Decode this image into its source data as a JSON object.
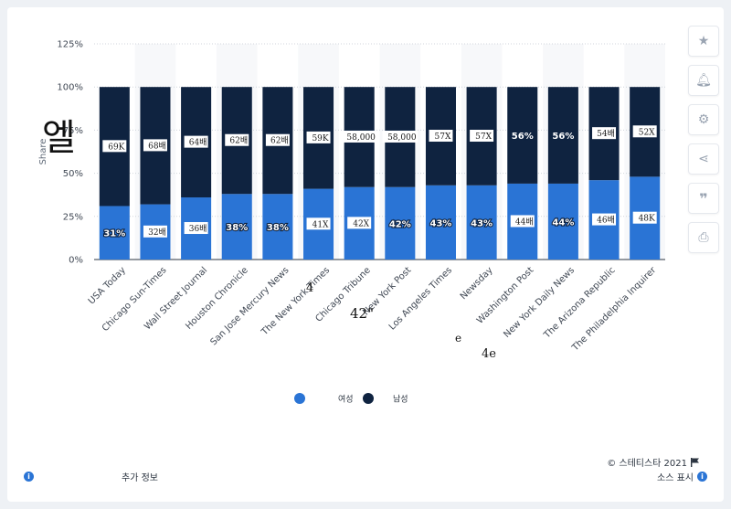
{
  "chart_data": {
    "type": "bar",
    "stacked": true,
    "ylabel": "Share",
    "ylim": [
      0,
      125
    ],
    "yticks": [
      "0%",
      "25%",
      "50%",
      "75%",
      "100%",
      "125%"
    ],
    "grid": true,
    "legend_position": "bottom",
    "categories": [
      "USA Today",
      "Chicago Sun-Times",
      "Wall Street Journal",
      "Houston Chronicle",
      "San Jose Mercury News",
      "The New York Times",
      "Chicago Tribune",
      "New York Post",
      "Los Angeles Times",
      "Newsday",
      "Washington Post",
      "New York Daily News",
      "The Arizona Republic",
      "The Philadelphia Inquirer"
    ],
    "category_labels": [
      "USA Today",
      "Chicago Sun-Times",
      "Wall Street Journal",
      "Houston Chronicle",
      "San Jose Mercury News",
      "The New York Times",
      "Chicago Tribune",
      "New York Post",
      "Los Angeles Times",
      "Newsday",
      "Washington Post",
      "New York Daily News",
      "The Arizona Republic",
      "The Philadelphia Inquirer"
    ],
    "series": [
      {
        "name": "여성",
        "color": "#2a74d5",
        "values": [
          31,
          32,
          36,
          38,
          38,
          41,
          42,
          42,
          43,
          43,
          44,
          44,
          46,
          48
        ],
        "labels": [
          "31%",
          "32배",
          "36배",
          "38%",
          "38%",
          "41X",
          "42X",
          "42%",
          "43%",
          "43%",
          "44배",
          "44%",
          "46배",
          "48K"
        ]
      },
      {
        "name": "남성",
        "color": "#0f2340",
        "values": [
          69,
          68,
          64,
          62,
          62,
          59,
          58,
          58,
          57,
          57,
          56,
          56,
          54,
          52
        ],
        "labels": [
          "69K",
          "68배",
          "64배",
          "62배",
          "62배",
          "59K",
          "58,000",
          "58,000",
          "57X",
          "57X",
          "56%",
          "56%",
          "54배",
          "52X"
        ]
      }
    ]
  },
  "overlay": {
    "glyph_large": "엘",
    "glyph_42": "42\"",
    "glyph_4": "4",
    "glyph_4e": "4e",
    "glyph_e": "e"
  },
  "footer": {
    "more_info": "추가 정보",
    "source": "소스 표시",
    "copyright": "© 스테티스타 2021"
  },
  "tools": [
    "star-icon",
    "bell-icon",
    "gear-icon",
    "share-icon",
    "quote-icon",
    "print-icon"
  ]
}
